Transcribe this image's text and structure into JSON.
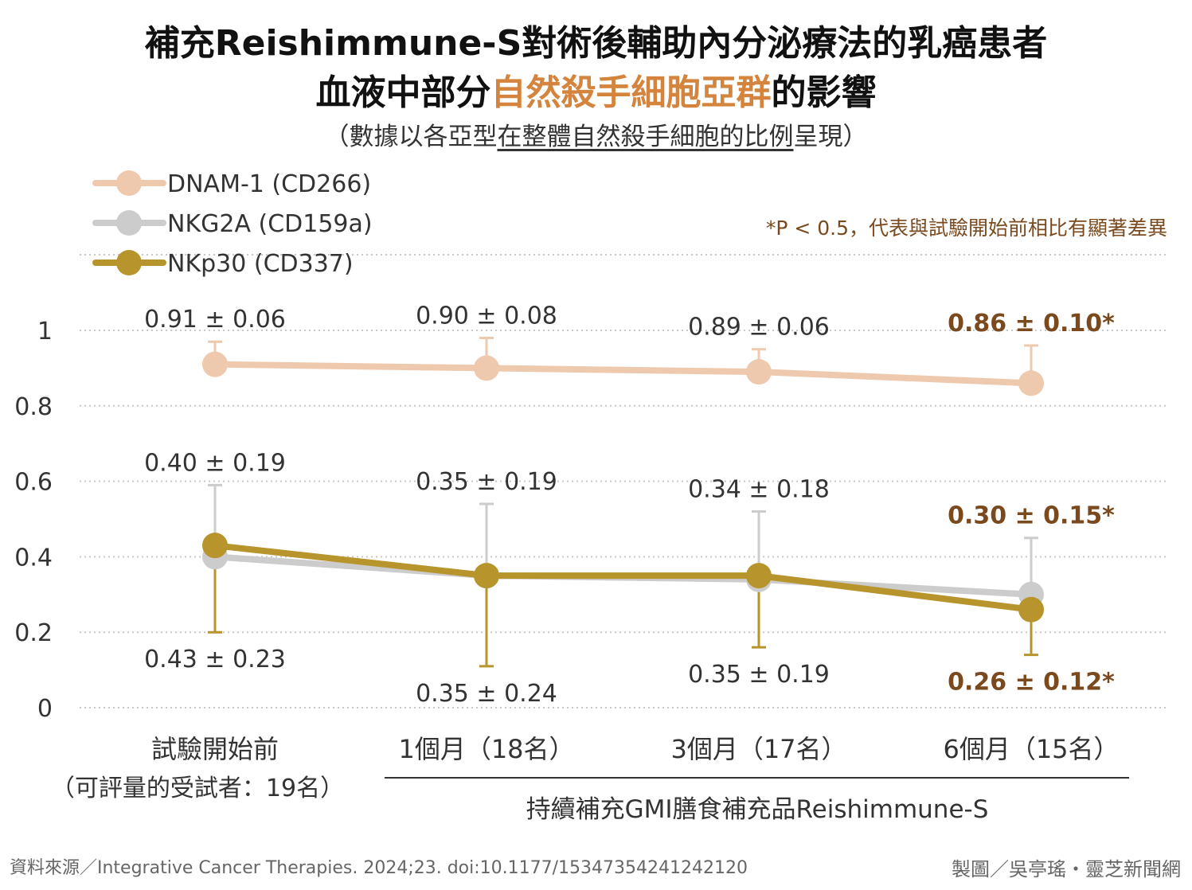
{
  "title": {
    "line1": "補充Reishimmune-S對術後輔助內分泌療法的乳癌患者",
    "line2_pre": "血液中部分",
    "line2_highlight": "自然殺手細胞亞群",
    "line2_post": "的影響"
  },
  "subtitle": {
    "pre": "（數據以各亞型",
    "underlined": "在整體自然殺手細胞的比例",
    "post": "呈現）"
  },
  "significance_note": "*P < 0.5，代表與試驗開始前相比有顯著差異",
  "colors": {
    "dnam1": "#efc9ae",
    "nkg2a": "#cccccc",
    "nkp30": "#b8942c",
    "highlight_title": "#d4843c",
    "significant_label": "#7a4a1e",
    "normal_label": "#333333"
  },
  "footer": {
    "source": "資料來源／Integrative Cancer Therapies. 2024;23. doi:10.1177/15347354241242120",
    "credit": "製圖／吳亭瑤・靈芝新聞網"
  },
  "chart_data": {
    "type": "line",
    "categories": [
      "試驗開始前",
      "1個月（18名）",
      "3個月（17名）",
      "6個月（15名）"
    ],
    "category_note": "（可評量的受試者：19名）",
    "group_label": "持續補充GMI膳食補充品Reishimmune-S",
    "ylim": [
      0,
      1
    ],
    "yticks": [
      "0",
      "0.2",
      "0.4",
      "0.6",
      "0.8",
      "1"
    ],
    "grid": true,
    "legend_position": "top-left",
    "series": [
      {
        "name": "DNAM-1 (CD266)",
        "key": "dnam1",
        "values": [
          0.91,
          0.9,
          0.89,
          0.86
        ],
        "error_upper": [
          0.97,
          0.98,
          0.95,
          0.96
        ],
        "labels": [
          "0.91 ± 0.06",
          "0.90 ± 0.08",
          "0.89 ± 0.06",
          "0.86 ± 0.10*"
        ],
        "label_side": "above",
        "significant": [
          false,
          false,
          false,
          true
        ]
      },
      {
        "name": "NKG2A (CD159a)",
        "key": "nkg2a",
        "values": [
          0.4,
          0.35,
          0.34,
          0.3
        ],
        "error_upper": [
          0.59,
          0.54,
          0.52,
          0.45
        ],
        "labels": [
          "0.40 ± 0.19",
          "0.35 ± 0.19",
          "0.34 ± 0.18",
          "0.30 ± 0.15*"
        ],
        "label_side": "above",
        "significant": [
          false,
          false,
          false,
          true
        ]
      },
      {
        "name": "NKp30 (CD337)",
        "key": "nkp30",
        "values": [
          0.43,
          0.35,
          0.35,
          0.26
        ],
        "error_lower": [
          0.2,
          0.11,
          0.16,
          0.14
        ],
        "labels": [
          "0.43 ± 0.23",
          "0.35 ± 0.24",
          "0.35 ± 0.19",
          "0.26 ± 0.12*"
        ],
        "label_side": "below",
        "significant": [
          false,
          false,
          false,
          true
        ]
      }
    ]
  }
}
